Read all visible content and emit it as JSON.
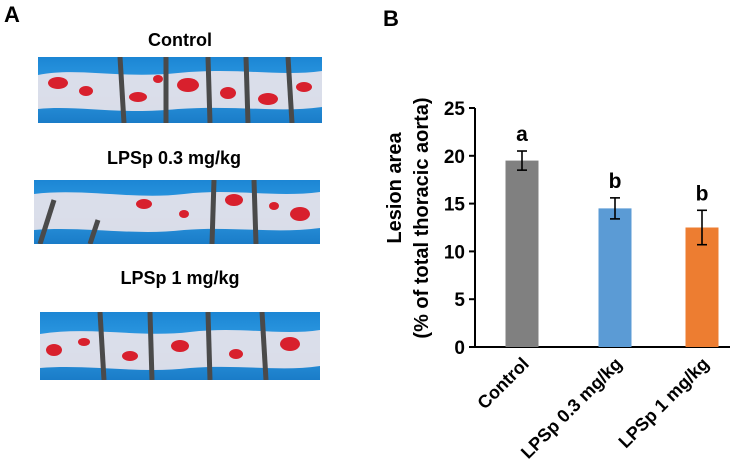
{
  "panel_a": {
    "label": "A",
    "photos": [
      {
        "title": "Control"
      },
      {
        "title": "LPSp 0.3 mg/kg"
      },
      {
        "title": "LPSp 1 mg/kg"
      }
    ]
  },
  "panel_b": {
    "label": "B"
  },
  "colors": {
    "bar_control": "#808080",
    "bar_low": "#5b9bd5",
    "bar_high": "#ed7d31",
    "background_photo": "#2a94dd",
    "lesion": "#d8202d"
  },
  "chart_data": {
    "type": "bar",
    "categories": [
      "Control",
      "LPSp 0.3 mg/kg",
      "LPSp 1 mg/kg"
    ],
    "values": [
      19.5,
      14.5,
      12.5
    ],
    "errors": [
      1.0,
      1.1,
      1.8
    ],
    "significance_labels": [
      "a",
      "b",
      "b"
    ],
    "ylabel_line1": "Lesion area",
    "ylabel_line2": "(% of total thoracic aorta)",
    "ylim": [
      0,
      25
    ],
    "yticks": [
      0,
      5,
      10,
      15,
      20,
      25
    ],
    "grid": false
  }
}
